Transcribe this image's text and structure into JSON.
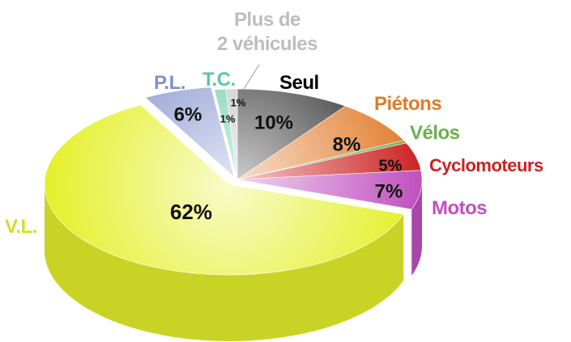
{
  "chart_data": {
    "type": "pie",
    "categories": [
      "Seul",
      "Piétons",
      "Vélos",
      "Cyclomoteurs",
      "Motos",
      "V.L.",
      "P.L.",
      "T.C.",
      "Plus de\n2 véhicules"
    ],
    "values": [
      10,
      8,
      0.5,
      5,
      7,
      62,
      6,
      1,
      1
    ],
    "value_labels": [
      "10%",
      "8%",
      null,
      "5%",
      "7%",
      "62%",
      "6%",
      "1%",
      "1%"
    ],
    "colors": [
      "#2a2a2a",
      "#e07b2a",
      "#6ab04c",
      "#cc2222",
      "#c050c0",
      "#e4f02a",
      "#8090cc",
      "#5cc7a0",
      "#bdbdbd"
    ]
  }
}
